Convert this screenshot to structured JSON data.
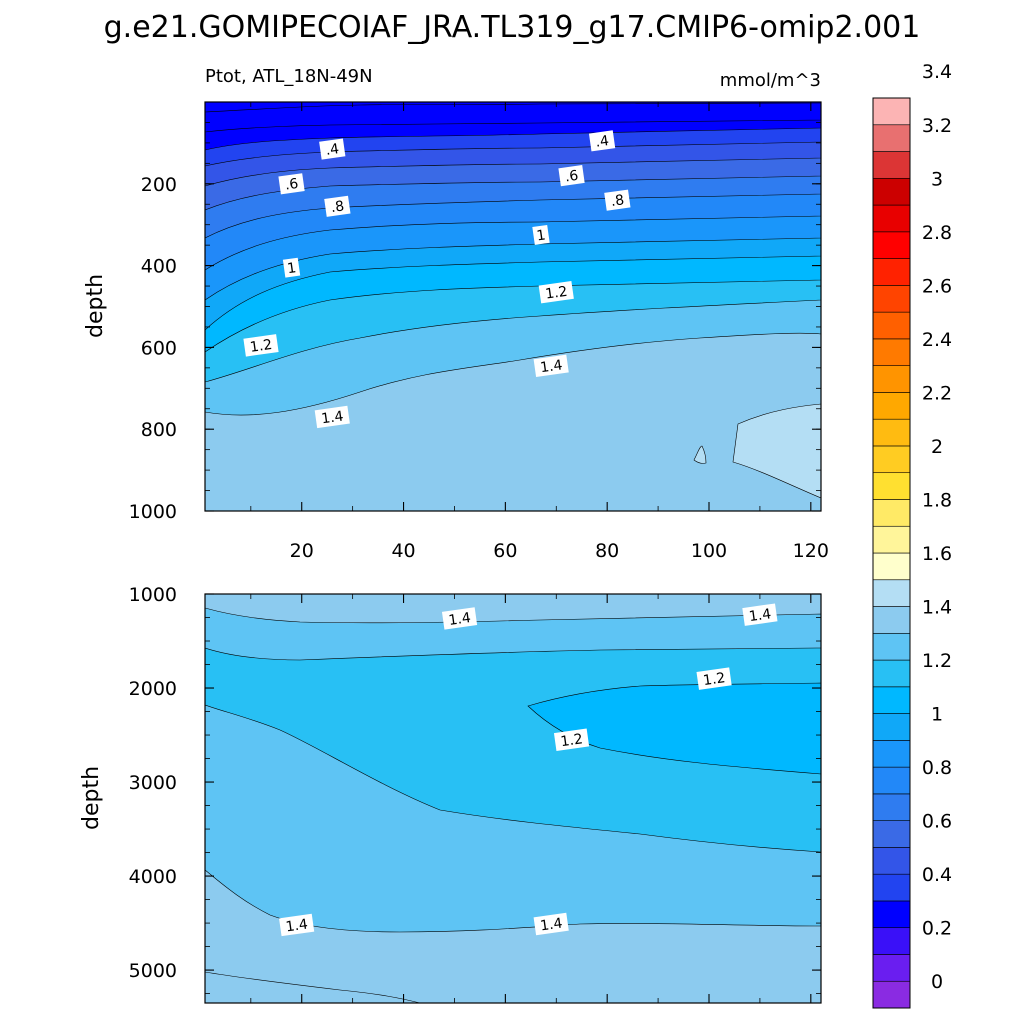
{
  "title": "g.e21.GOMIPECOIAF_JRA.TL319_g17.CMIP6-omip2.001",
  "subtitle_left": "Ptot, ATL_18N-49N",
  "subtitle_right": "mmol/m^3",
  "chart_data": [
    {
      "type": "heatmap",
      "panel": "upper",
      "ylabel": "depth",
      "y_reversed": true,
      "xlim": [
        1,
        122
      ],
      "ylim": [
        1000,
        0
      ],
      "x_ticks": [
        20,
        40,
        60,
        80,
        100,
        120
      ],
      "y_ticks": [
        200,
        400,
        600,
        800,
        1000
      ],
      "contour_levels": [
        0.2,
        0.3,
        0.4,
        0.5,
        0.6,
        0.7,
        0.8,
        0.9,
        1.0,
        1.1,
        1.2,
        1.3,
        1.4,
        1.5,
        1.6
      ],
      "contour_labels": [
        {
          "text": ".4",
          "x": 26,
          "y": 115
        },
        {
          "text": ".4",
          "x": 79,
          "y": 95
        },
        {
          "text": ".6",
          "x": 18,
          "y": 200
        },
        {
          "text": ".6",
          "x": 73,
          "y": 180
        },
        {
          "text": ".8",
          "x": 27,
          "y": 255
        },
        {
          "text": ".8",
          "x": 82,
          "y": 240
        },
        {
          "text": "1",
          "x": 67,
          "y": 325
        },
        {
          "text": "1",
          "x": 18,
          "y": 405
        },
        {
          "text": "1.2",
          "x": 70,
          "y": 465
        },
        {
          "text": "1.2",
          "x": 12,
          "y": 595
        },
        {
          "text": "1.4",
          "x": 69,
          "y": 645
        },
        {
          "text": "1.4",
          "x": 26,
          "y": 770
        }
      ]
    },
    {
      "type": "heatmap",
      "panel": "lower",
      "ylabel": "depth",
      "y_reversed": true,
      "xlim": [
        1,
        122
      ],
      "ylim": [
        5350,
        1000
      ],
      "y_ticks": [
        1000,
        2000,
        3000,
        4000,
        5000
      ],
      "contour_levels": [
        1.2,
        1.3,
        1.4,
        1.5
      ],
      "contour_labels": [
        {
          "text": "1.4",
          "x": 51,
          "y": 1260
        },
        {
          "text": "1.4",
          "x": 110,
          "y": 1220
        },
        {
          "text": "1.2",
          "x": 101,
          "y": 1900
        },
        {
          "text": "1.2",
          "x": 73,
          "y": 2550
        },
        {
          "text": "1.4",
          "x": 19,
          "y": 4520
        },
        {
          "text": "1.4",
          "x": 69,
          "y": 4510
        }
      ]
    }
  ],
  "colorbar": {
    "tick_labels": [
      "0",
      "0.2",
      "0.4",
      "0.6",
      "0.8",
      "1",
      "1.2",
      "1.4",
      "1.6",
      "1.8",
      "2",
      "2.2",
      "2.4",
      "2.6",
      "2.8",
      "3",
      "3.2",
      "3.4"
    ],
    "colors": [
      "#8a2be2",
      "#6a1ef0",
      "#3a10f8",
      "#0000ff",
      "#2244f0",
      "#3355e8",
      "#3a6ae6",
      "#2f7cf0",
      "#2288f8",
      "#1a96fa",
      "#10a8f8",
      "#00b8ff",
      "#28c0f4",
      "#5ec4f4",
      "#8ccbef",
      "#b4def4",
      "#ffffcc",
      "#fff59a",
      "#ffea66",
      "#ffe030",
      "#ffcc22",
      "#ffbb11",
      "#ffa800",
      "#ff9400",
      "#ff7a00",
      "#ff6000",
      "#ff4400",
      "#ff2200",
      "#ff0000",
      "#e80000",
      "#cc0000",
      "#dc3535",
      "#e87070",
      "#fcb4b4"
    ]
  }
}
